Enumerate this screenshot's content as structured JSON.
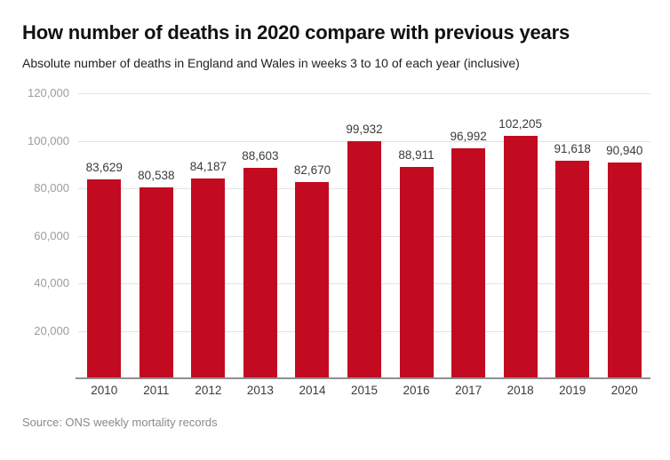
{
  "header": {
    "title": "How number of deaths in 2020 compare with previous years",
    "subtitle": "Absolute number of deaths in England and Wales in weeks 3 to 10 of each year (inclusive)"
  },
  "footer": {
    "source": "Source: ONS weekly mortality records"
  },
  "colors": {
    "bar": "#c20b21",
    "gridline": "#e3e3e3",
    "baseline": "#8f8f8f",
    "ytick_label": "#9c9c9c",
    "value_label": "#3b3b3b",
    "title": "#111111",
    "subtitle": "#222222",
    "source": "#8a8a8a",
    "background": "#ffffff"
  },
  "chart_data": {
    "type": "bar",
    "title": "How number of deaths in 2020 compare with previous years",
    "subtitle": "Absolute number of deaths in England and Wales in weeks 3 to 10 of each year (inclusive)",
    "categories": [
      "2010",
      "2011",
      "2012",
      "2013",
      "2014",
      "2015",
      "2016",
      "2017",
      "2018",
      "2019",
      "2020"
    ],
    "values": [
      83629,
      80538,
      84187,
      88603,
      82670,
      99932,
      88911,
      96992,
      102205,
      91618,
      90940
    ],
    "value_labels": [
      "83,629",
      "80,538",
      "84,187",
      "88,603",
      "82,670",
      "99,932",
      "88,911",
      "96,992",
      "102,205",
      "91,618",
      "90,940"
    ],
    "xlabel": "",
    "ylabel": "",
    "ylim": [
      0,
      120000
    ],
    "yticks": [
      20000,
      40000,
      60000,
      80000,
      100000,
      120000
    ],
    "ytick_labels": [
      "20,000",
      "40,000",
      "60,000",
      "80,000",
      "100,000",
      "120,000"
    ],
    "grid": true,
    "legend": false,
    "bar_color": "#c20b21",
    "source": "Source: ONS weekly mortality records"
  }
}
